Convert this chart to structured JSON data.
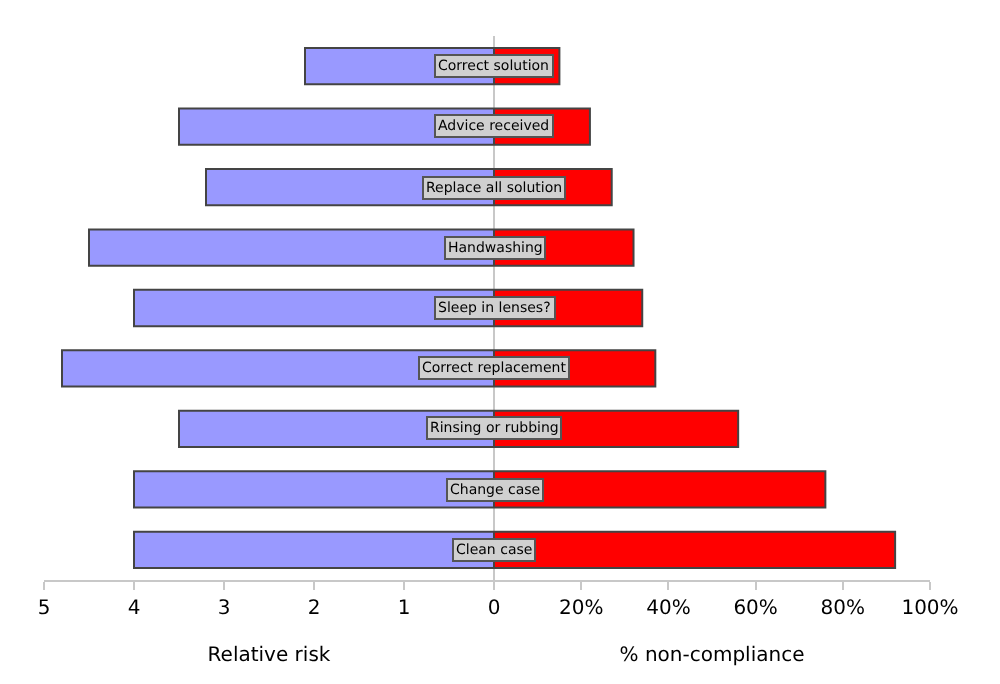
{
  "chart_data": [
    {
      "type": "bar",
      "orientation": "horizontal",
      "categories": [
        null,
        null,
        null,
        null,
        null,
        null,
        null,
        null,
        null
      ],
      "values": [
        2.1,
        3.5,
        3.2,
        4.5,
        4.0,
        4.8,
        3.5,
        4.0,
        4.0
      ],
      "color": "#9999ff",
      "xlim": [
        5,
        0
      ],
      "xticks": [
        5,
        4,
        3,
        2,
        1,
        0
      ],
      "xlabel": "Relative risk",
      "tick_labels": "x"
    },
    {
      "type": "bar",
      "orientation": "horizontal",
      "categories": [
        "Correct solution",
        "Advice received",
        "Replace all solution",
        "Handwashing",
        "Sleep in lenses?",
        "Correct replacement",
        "Rinsing or rubbing",
        "Change case",
        "Clean case"
      ],
      "values": [
        15,
        22,
        27,
        32,
        34,
        37,
        56,
        76,
        92
      ],
      "color": "#ff0000",
      "xlim": [
        0,
        100
      ],
      "xticks": [
        {
          "value": 0,
          "label": null
        },
        {
          "value": 20,
          "label": "20%"
        },
        {
          "value": 40,
          "label": "40%"
        },
        {
          "value": 60,
          "label": "60%"
        },
        {
          "value": 80,
          "label": "80%"
        },
        {
          "value": 100,
          "label": "100%"
        }
      ],
      "xlabel": "% non-compliance"
    }
  ]
}
